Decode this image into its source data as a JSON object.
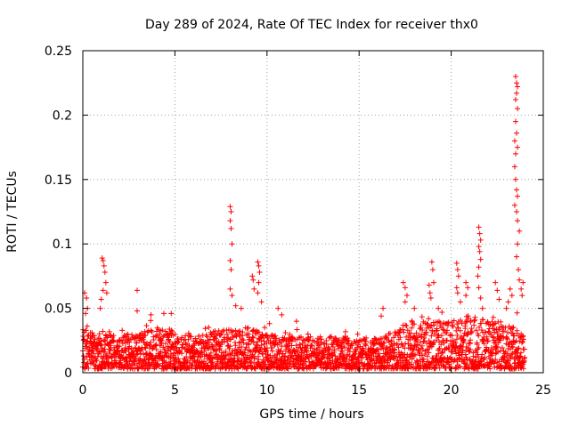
{
  "chart_data": {
    "type": "scatter",
    "title": "Day 289 of 2024, Rate Of TEC Index for receiver thx0",
    "xlabel": "GPS time / hours",
    "ylabel": "ROTI / TECUs",
    "xlim": [
      0,
      25
    ],
    "ylim": [
      0,
      0.25
    ],
    "xticks": [
      0,
      5,
      10,
      15,
      20,
      25
    ],
    "xtick_labels": [
      "0",
      "5",
      "10",
      "15",
      "20",
      "25"
    ],
    "yticks": [
      0,
      0.05,
      0.1,
      0.15,
      0.2,
      0.25
    ],
    "ytick_labels": [
      "0",
      "0.05",
      "0.1",
      "0.15",
      "0.2",
      "0.25"
    ],
    "grid": true,
    "marker": "+",
    "color": "#ff0000",
    "series": [
      {
        "name": "ROTI",
        "baseline_envelope": {
          "x": [
            0,
            1,
            2,
            3,
            4,
            5,
            6,
            7,
            8,
            9,
            10,
            11,
            12,
            13,
            14,
            15,
            16,
            17,
            18,
            19,
            20,
            21,
            22,
            23,
            24
          ],
          "upper": [
            0.035,
            0.03,
            0.03,
            0.03,
            0.035,
            0.033,
            0.03,
            0.032,
            0.035,
            0.035,
            0.03,
            0.028,
            0.028,
            0.028,
            0.028,
            0.027,
            0.027,
            0.035,
            0.04,
            0.04,
            0.04,
            0.045,
            0.04,
            0.04,
            0.035
          ]
        },
        "spike_points": [
          {
            "x": 0.1,
            "y": 0.062
          },
          {
            "x": 0.2,
            "y": 0.058
          },
          {
            "x": 0.25,
            "y": 0.05
          },
          {
            "x": 0.15,
            "y": 0.046
          },
          {
            "x": 1.05,
            "y": 0.089
          },
          {
            "x": 1.1,
            "y": 0.087
          },
          {
            "x": 1.15,
            "y": 0.083
          },
          {
            "x": 1.2,
            "y": 0.078
          },
          {
            "x": 1.25,
            "y": 0.07
          },
          {
            "x": 1.1,
            "y": 0.064
          },
          {
            "x": 1.0,
            "y": 0.057
          },
          {
            "x": 1.3,
            "y": 0.062
          },
          {
            "x": 0.95,
            "y": 0.05
          },
          {
            "x": 2.95,
            "y": 0.064
          },
          {
            "x": 2.95,
            "y": 0.048
          },
          {
            "x": 3.7,
            "y": 0.045
          },
          {
            "x": 4.4,
            "y": 0.046
          },
          {
            "x": 4.8,
            "y": 0.046
          },
          {
            "x": 8.0,
            "y": 0.129
          },
          {
            "x": 8.05,
            "y": 0.125
          },
          {
            "x": 8.0,
            "y": 0.118
          },
          {
            "x": 8.05,
            "y": 0.112
          },
          {
            "x": 8.1,
            "y": 0.1
          },
          {
            "x": 8.0,
            "y": 0.087
          },
          {
            "x": 8.05,
            "y": 0.08
          },
          {
            "x": 8.0,
            "y": 0.065
          },
          {
            "x": 8.1,
            "y": 0.06
          },
          {
            "x": 8.3,
            "y": 0.052
          },
          {
            "x": 8.6,
            "y": 0.05
          },
          {
            "x": 9.2,
            "y": 0.075
          },
          {
            "x": 9.25,
            "y": 0.072
          },
          {
            "x": 9.3,
            "y": 0.065
          },
          {
            "x": 9.5,
            "y": 0.086
          },
          {
            "x": 9.55,
            "y": 0.083
          },
          {
            "x": 9.6,
            "y": 0.078
          },
          {
            "x": 9.55,
            "y": 0.07
          },
          {
            "x": 9.5,
            "y": 0.062
          },
          {
            "x": 9.7,
            "y": 0.055
          },
          {
            "x": 10.6,
            "y": 0.05
          },
          {
            "x": 10.8,
            "y": 0.045
          },
          {
            "x": 11.6,
            "y": 0.04
          },
          {
            "x": 16.3,
            "y": 0.05
          },
          {
            "x": 16.2,
            "y": 0.044
          },
          {
            "x": 17.4,
            "y": 0.07
          },
          {
            "x": 17.5,
            "y": 0.066
          },
          {
            "x": 17.6,
            "y": 0.06
          },
          {
            "x": 17.5,
            "y": 0.055
          },
          {
            "x": 18.0,
            "y": 0.05
          },
          {
            "x": 18.8,
            "y": 0.068
          },
          {
            "x": 18.85,
            "y": 0.062
          },
          {
            "x": 18.9,
            "y": 0.058
          },
          {
            "x": 18.95,
            "y": 0.086
          },
          {
            "x": 19.0,
            "y": 0.08
          },
          {
            "x": 19.05,
            "y": 0.07
          },
          {
            "x": 19.3,
            "y": 0.05
          },
          {
            "x": 19.5,
            "y": 0.047
          },
          {
            "x": 20.3,
            "y": 0.085
          },
          {
            "x": 20.35,
            "y": 0.08
          },
          {
            "x": 20.4,
            "y": 0.075
          },
          {
            "x": 20.3,
            "y": 0.066
          },
          {
            "x": 20.35,
            "y": 0.062
          },
          {
            "x": 20.5,
            "y": 0.055
          },
          {
            "x": 20.8,
            "y": 0.07
          },
          {
            "x": 20.9,
            "y": 0.066
          },
          {
            "x": 20.8,
            "y": 0.06
          },
          {
            "x": 21.5,
            "y": 0.113
          },
          {
            "x": 21.55,
            "y": 0.108
          },
          {
            "x": 21.6,
            "y": 0.103
          },
          {
            "x": 21.5,
            "y": 0.098
          },
          {
            "x": 21.55,
            "y": 0.094
          },
          {
            "x": 21.6,
            "y": 0.088
          },
          {
            "x": 21.5,
            "y": 0.082
          },
          {
            "x": 21.45,
            "y": 0.075
          },
          {
            "x": 21.5,
            "y": 0.066
          },
          {
            "x": 21.6,
            "y": 0.058
          },
          {
            "x": 21.7,
            "y": 0.05
          },
          {
            "x": 22.4,
            "y": 0.07
          },
          {
            "x": 22.5,
            "y": 0.064
          },
          {
            "x": 22.6,
            "y": 0.057
          },
          {
            "x": 23.5,
            "y": 0.23
          },
          {
            "x": 23.55,
            "y": 0.225
          },
          {
            "x": 23.6,
            "y": 0.222
          },
          {
            "x": 23.55,
            "y": 0.217
          },
          {
            "x": 23.5,
            "y": 0.212
          },
          {
            "x": 23.6,
            "y": 0.205
          },
          {
            "x": 23.5,
            "y": 0.195
          },
          {
            "x": 23.55,
            "y": 0.186
          },
          {
            "x": 23.45,
            "y": 0.18
          },
          {
            "x": 23.6,
            "y": 0.175
          },
          {
            "x": 23.5,
            "y": 0.17
          },
          {
            "x": 23.45,
            "y": 0.16
          },
          {
            "x": 23.5,
            "y": 0.15
          },
          {
            "x": 23.55,
            "y": 0.142
          },
          {
            "x": 23.6,
            "y": 0.137
          },
          {
            "x": 23.45,
            "y": 0.13
          },
          {
            "x": 23.55,
            "y": 0.125
          },
          {
            "x": 23.6,
            "y": 0.118
          },
          {
            "x": 23.7,
            "y": 0.11
          },
          {
            "x": 23.6,
            "y": 0.1
          },
          {
            "x": 23.55,
            "y": 0.09
          },
          {
            "x": 23.65,
            "y": 0.08
          },
          {
            "x": 23.7,
            "y": 0.072
          },
          {
            "x": 23.8,
            "y": 0.065
          },
          {
            "x": 23.9,
            "y": 0.07
          },
          {
            "x": 23.85,
            "y": 0.06
          },
          {
            "x": 23.2,
            "y": 0.065
          },
          {
            "x": 23.3,
            "y": 0.06
          },
          {
            "x": 23.1,
            "y": 0.055
          },
          {
            "x": 23.0,
            "y": 0.05
          }
        ]
      }
    ]
  }
}
